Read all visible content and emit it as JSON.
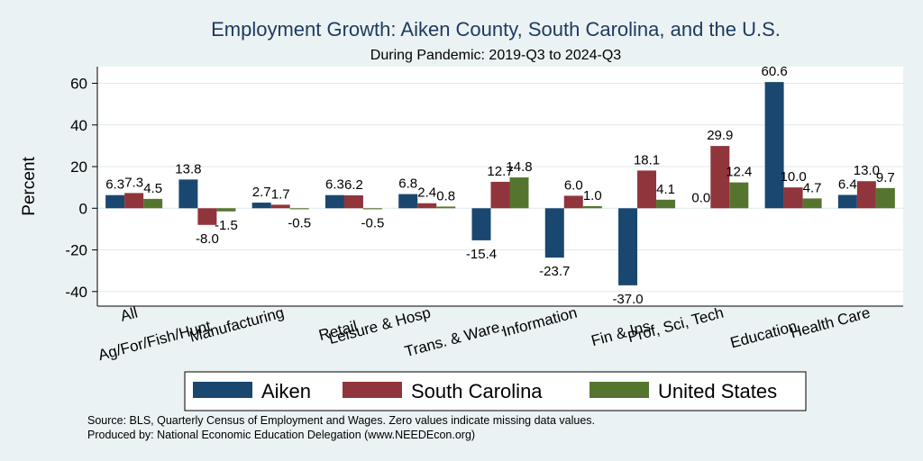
{
  "chart_data": {
    "type": "bar",
    "title": "Employment Growth: Aiken County, South Carolina, and the U.S.",
    "subtitle": "During Pandemic: 2019-Q3 to 2024-Q3",
    "ylabel": "Percent",
    "xlabel": "",
    "ylim": [
      -47,
      68
    ],
    "yticks": [
      60,
      40,
      20,
      0,
      -20,
      -40
    ],
    "grid": true,
    "legend_position": "bottom",
    "categories": [
      "All",
      "Ag/For/Fish/Hunt",
      "Manufacturing",
      "Retail",
      "Leisure & Hosp",
      "Trans. & Ware.",
      "Information",
      "Fin & Ins",
      "Prof, Sci, Tech",
      "Education",
      "Health Care"
    ],
    "series": [
      {
        "name": "Aiken",
        "color": "#1a476f",
        "values": [
          6.3,
          13.8,
          2.7,
          6.3,
          6.8,
          -15.4,
          -23.7,
          -37.0,
          0.0,
          60.6,
          6.4
        ]
      },
      {
        "name": "South Carolina",
        "color": "#90353b",
        "values": [
          7.3,
          -8.0,
          1.7,
          6.2,
          2.4,
          12.7,
          6.0,
          18.1,
          29.9,
          10.0,
          13.0
        ]
      },
      {
        "name": "United States",
        "color": "#55752f",
        "values": [
          4.5,
          -1.5,
          -0.5,
          -0.5,
          0.8,
          14.8,
          1.0,
          4.1,
          12.4,
          4.7,
          9.7
        ]
      }
    ]
  },
  "notes": {
    "source": "Source: BLS, Quarterly Census of Employment and Wages. Zero values indicate missing data values.",
    "produced": "Produced by: National Economic Education Delegation (www.NEEDEcon.org)"
  }
}
